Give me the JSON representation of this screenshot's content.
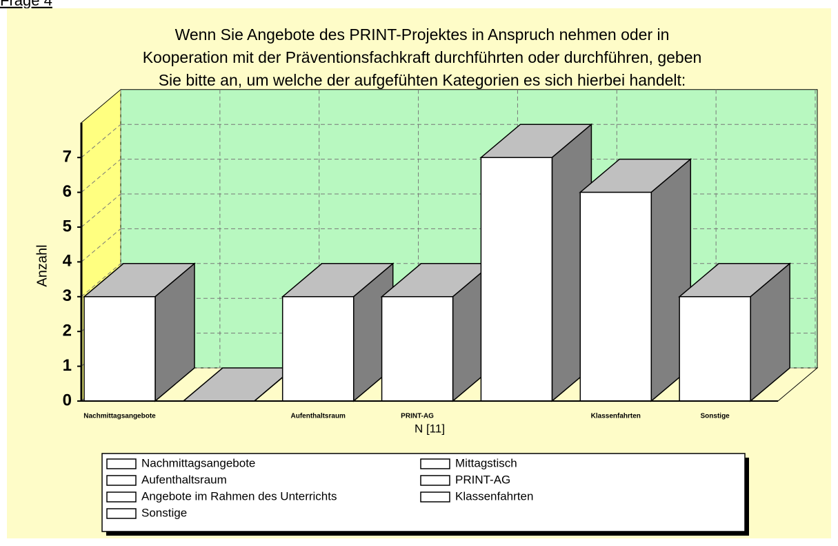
{
  "page_label": "Frage 4",
  "chart_data": {
    "type": "bar3d",
    "title": [
      "Wenn Sie  Angebote des PRINT-Projektes in Anspruch nehmen oder  in",
      "Kooperation mit der Präventionsfachkraft durchführten oder durchführen, geben",
      "Sie  bitte an, um welche der aufgefühten Kategorien es sich hierbei handelt:"
    ],
    "y_label": "Anzahl",
    "x_label": "N [11]",
    "categories": [
      "Nachmittagsangebote",
      null,
      "Aufenthaltsraum",
      "PRINT-AG",
      null,
      "Klassenfahrten",
      "Sonstige"
    ],
    "legend": [
      "Nachmittagsangebote",
      "Mittagstisch",
      "Aufenthaltsraum",
      "PRINT-AG",
      "Angebote im Rahmen des Unterrichts",
      "Klassenfahrten",
      "Sonstige"
    ],
    "values": [
      3,
      0,
      3,
      3,
      7,
      6,
      3
    ],
    "color": "#ffffff",
    "ylim": [
      0,
      8
    ],
    "yticks": [
      0,
      1,
      2,
      3,
      4,
      5,
      6,
      7
    ],
    "grid": true
  }
}
